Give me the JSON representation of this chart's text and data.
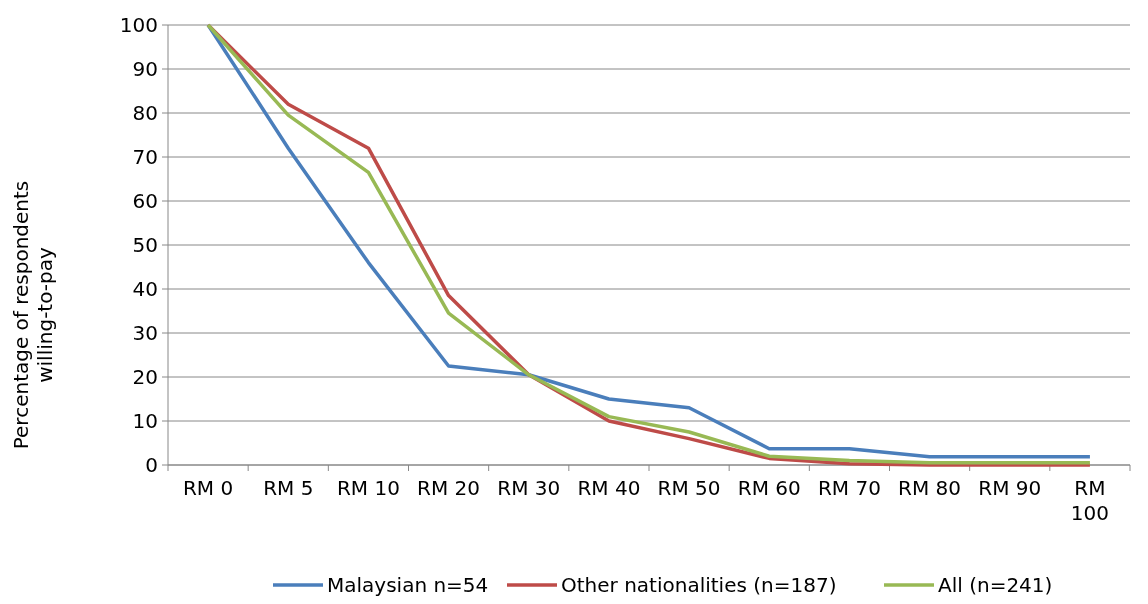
{
  "chart_data": {
    "type": "line",
    "ylabel": "Percentage of respondents willing-to-pay",
    "categories": [
      "RM 0",
      "RM 5",
      "RM 10",
      "RM 20",
      "RM 30",
      "RM 40",
      "RM 50",
      "RM 60",
      "RM 70",
      "RM 80",
      "RM 90",
      "RM 100"
    ],
    "series": [
      {
        "name": "Malaysian n=54",
        "color": "#4a7ebb",
        "values": [
          100,
          72,
          46,
          22.5,
          20.5,
          15,
          13,
          3.7,
          3.7,
          1.9,
          1.9,
          1.9
        ]
      },
      {
        "name": "Other nationalities (n=187)",
        "color": "#be4b48",
        "values": [
          100,
          82,
          72,
          38.5,
          20.5,
          10,
          6,
          1.5,
          0.3,
          0,
          0,
          0
        ]
      },
      {
        "name": "All (n=241)",
        "color": "#98b954",
        "values": [
          100,
          79.5,
          66.5,
          34.5,
          20.5,
          11,
          7.5,
          2,
          1,
          0.5,
          0.5,
          0.5
        ]
      }
    ],
    "ylim": [
      0,
      100
    ],
    "yticks": [
      0,
      10,
      20,
      30,
      40,
      50,
      60,
      70,
      80,
      90,
      100
    ],
    "grid": "y",
    "legend": "bottom",
    "line_style": "solid",
    "marker": "none"
  }
}
